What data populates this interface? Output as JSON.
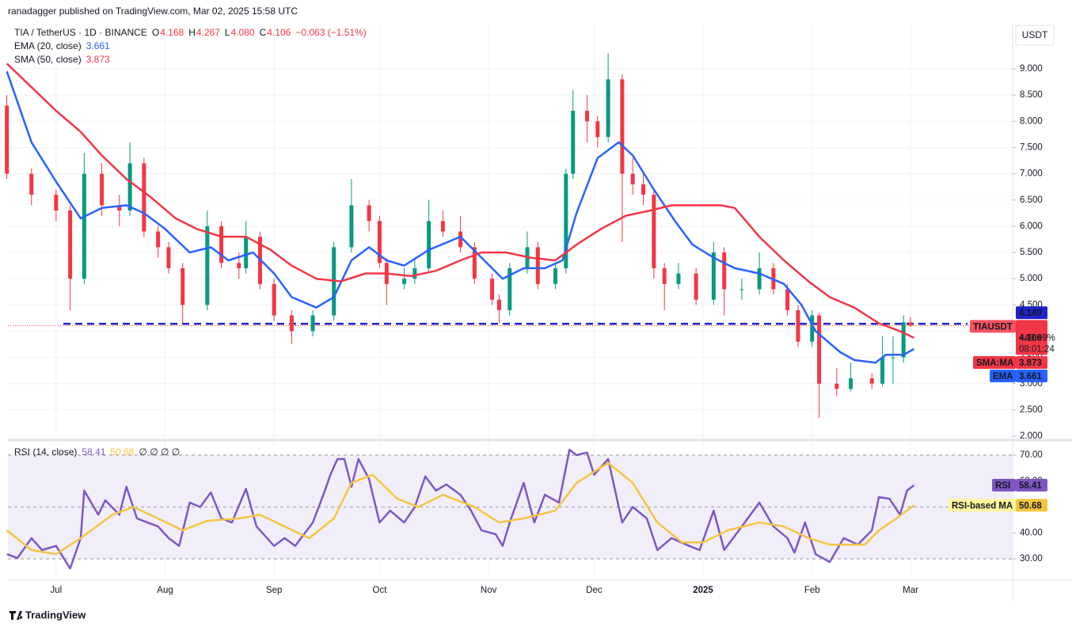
{
  "header": {
    "published": "ranadagger published on TradingView.com, Mar 02, 2025 15:58 UTC",
    "currency": "USDT",
    "footer": "TradingView"
  },
  "chart_data": [
    {
      "type": "candlestick",
      "symbol": "TIA / TetherUS · 1D · BINANCE",
      "ohlc_legend": [
        {
          "key": "O",
          "text": "4.168"
        },
        {
          "key": "H",
          "text": "4.267"
        },
        {
          "key": "L",
          "text": "4.080"
        },
        {
          "key": "C",
          "text": "4.106"
        }
      ],
      "change": "−0.063 (−1.51%)",
      "xlim": [
        -13.7,
        271.8
      ],
      "xticks": [
        {
          "value": 0,
          "label": "Jul"
        },
        {
          "value": 31,
          "label": "Aug"
        },
        {
          "value": 62,
          "label": "Sep"
        },
        {
          "value": 92,
          "label": "Oct"
        },
        {
          "value": 123,
          "label": "Nov"
        },
        {
          "value": 153,
          "label": "Dec"
        },
        {
          "value": 184,
          "label": "2025"
        },
        {
          "value": 215,
          "label": "Feb"
        },
        {
          "value": 243,
          "label": "Mar"
        }
      ],
      "ylim": [
        1.94,
        9.86
      ],
      "yticks": [
        {
          "value": 2,
          "label": "2.000"
        },
        {
          "value": 2.5,
          "label": "2.500"
        },
        {
          "value": 3,
          "label": "3.000"
        },
        {
          "value": 3.5,
          "label": "3.500"
        },
        {
          "value": 4,
          "label": "4.000"
        },
        {
          "value": 4.5,
          "label": "4.500"
        },
        {
          "value": 5,
          "label": "5.000"
        },
        {
          "value": 5.5,
          "label": "5.500"
        },
        {
          "value": 6,
          "label": "6.000"
        },
        {
          "value": 6.5,
          "label": "6.500"
        },
        {
          "value": 7,
          "label": "7.000"
        },
        {
          "value": 7.5,
          "label": "7.500"
        },
        {
          "value": 8,
          "label": "8.000"
        },
        {
          "value": 8.5,
          "label": "8.500"
        },
        {
          "value": 9,
          "label": "9.000"
        }
      ],
      "grid": true,
      "colors": {
        "up": "#089981",
        "down": "#f23645"
      },
      "candles": [
        {
          "x": -14,
          "o": 8.3,
          "h": 8.5,
          "l": 6.9,
          "c": 7.0
        },
        {
          "x": -7,
          "o": 7.0,
          "h": 7.1,
          "l": 6.4,
          "c": 6.6
        },
        {
          "x": 0,
          "o": 6.6,
          "h": 6.7,
          "l": 6.1,
          "c": 6.3
        },
        {
          "x": 4,
          "o": 6.3,
          "h": 6.4,
          "l": 4.4,
          "c": 5.0
        },
        {
          "x": 8,
          "o": 5.0,
          "h": 7.4,
          "l": 4.9,
          "c": 7.0
        },
        {
          "x": 13,
          "o": 7.0,
          "h": 7.2,
          "l": 6.2,
          "c": 6.4
        },
        {
          "x": 18,
          "o": 6.4,
          "h": 6.6,
          "l": 6.0,
          "c": 6.3
        },
        {
          "x": 21,
          "o": 6.3,
          "h": 7.6,
          "l": 6.2,
          "c": 7.2
        },
        {
          "x": 25,
          "o": 7.2,
          "h": 7.3,
          "l": 5.8,
          "c": 5.9
        },
        {
          "x": 29,
          "o": 5.9,
          "h": 6.0,
          "l": 5.4,
          "c": 5.6
        },
        {
          "x": 32,
          "o": 5.6,
          "h": 5.7,
          "l": 5.1,
          "c": 5.2
        },
        {
          "x": 36,
          "o": 5.2,
          "h": 5.3,
          "l": 4.15,
          "c": 4.5
        },
        {
          "x": 43,
          "o": 4.5,
          "h": 6.3,
          "l": 4.4,
          "c": 6.0
        },
        {
          "x": 47,
          "o": 6.0,
          "h": 6.1,
          "l": 5.2,
          "c": 5.3
        },
        {
          "x": 52,
          "o": 5.3,
          "h": 5.5,
          "l": 5.0,
          "c": 5.2
        },
        {
          "x": 54,
          "o": 5.2,
          "h": 6.1,
          "l": 5.1,
          "c": 5.8
        },
        {
          "x": 58,
          "o": 5.8,
          "h": 5.9,
          "l": 4.8,
          "c": 4.9
        },
        {
          "x": 62,
          "o": 4.9,
          "h": 5.0,
          "l": 4.2,
          "c": 4.3
        },
        {
          "x": 67,
          "o": 4.3,
          "h": 4.4,
          "l": 3.75,
          "c": 4.0
        },
        {
          "x": 73,
          "o": 4.0,
          "h": 4.4,
          "l": 3.9,
          "c": 4.3
        },
        {
          "x": 79,
          "o": 4.3,
          "h": 5.7,
          "l": 4.2,
          "c": 5.6
        },
        {
          "x": 84,
          "o": 5.6,
          "h": 6.9,
          "l": 5.5,
          "c": 6.4
        },
        {
          "x": 89,
          "o": 6.4,
          "h": 6.5,
          "l": 5.9,
          "c": 6.1
        },
        {
          "x": 92,
          "o": 6.1,
          "h": 6.2,
          "l": 5.2,
          "c": 5.3
        },
        {
          "x": 94,
          "o": 5.3,
          "h": 5.4,
          "l": 4.5,
          "c": 4.9
        },
        {
          "x": 99,
          "o": 4.9,
          "h": 5.2,
          "l": 4.8,
          "c": 5.0
        },
        {
          "x": 102,
          "o": 5.0,
          "h": 5.4,
          "l": 4.9,
          "c": 5.2
        },
        {
          "x": 106,
          "o": 5.2,
          "h": 6.5,
          "l": 5.1,
          "c": 6.1
        },
        {
          "x": 110,
          "o": 6.1,
          "h": 6.3,
          "l": 5.8,
          "c": 5.9
        },
        {
          "x": 115,
          "o": 5.9,
          "h": 6.2,
          "l": 5.5,
          "c": 5.6
        },
        {
          "x": 119,
          "o": 5.6,
          "h": 5.7,
          "l": 4.9,
          "c": 5.0
        },
        {
          "x": 124,
          "o": 5.0,
          "h": 5.1,
          "l": 4.5,
          "c": 4.6
        },
        {
          "x": 126,
          "o": 4.6,
          "h": 4.7,
          "l": 4.15,
          "c": 4.4
        },
        {
          "x": 129,
          "o": 4.4,
          "h": 5.3,
          "l": 4.3,
          "c": 5.2
        },
        {
          "x": 134,
          "o": 5.2,
          "h": 5.9,
          "l": 5.1,
          "c": 5.6
        },
        {
          "x": 137,
          "o": 5.6,
          "h": 5.7,
          "l": 4.8,
          "c": 4.9
        },
        {
          "x": 142,
          "o": 4.9,
          "h": 5.3,
          "l": 4.8,
          "c": 5.2
        },
        {
          "x": 145,
          "o": 5.2,
          "h": 7.1,
          "l": 5.1,
          "c": 7.0
        },
        {
          "x": 147,
          "o": 7.0,
          "h": 8.6,
          "l": 6.9,
          "c": 8.2
        },
        {
          "x": 151,
          "o": 8.2,
          "h": 8.5,
          "l": 7.6,
          "c": 8.0
        },
        {
          "x": 154,
          "o": 8.0,
          "h": 8.1,
          "l": 7.5,
          "c": 7.7
        },
        {
          "x": 157,
          "o": 7.7,
          "h": 9.3,
          "l": 7.6,
          "c": 8.8
        },
        {
          "x": 161,
          "o": 8.8,
          "h": 8.9,
          "l": 5.7,
          "c": 7.0
        },
        {
          "x": 164,
          "o": 7.0,
          "h": 7.3,
          "l": 6.6,
          "c": 6.8
        },
        {
          "x": 167,
          "o": 6.8,
          "h": 7.0,
          "l": 6.4,
          "c": 6.6
        },
        {
          "x": 170,
          "o": 6.6,
          "h": 6.7,
          "l": 5.0,
          "c": 5.2
        },
        {
          "x": 173,
          "o": 5.2,
          "h": 5.3,
          "l": 4.4,
          "c": 4.9
        },
        {
          "x": 177,
          "o": 4.9,
          "h": 5.3,
          "l": 4.8,
          "c": 5.1
        },
        {
          "x": 182,
          "o": 5.1,
          "h": 5.2,
          "l": 4.5,
          "c": 4.6
        },
        {
          "x": 187,
          "o": 4.6,
          "h": 5.7,
          "l": 4.5,
          "c": 5.5
        },
        {
          "x": 190,
          "o": 5.5,
          "h": 5.6,
          "l": 4.3,
          "c": 4.8
        },
        {
          "x": 195,
          "o": 4.8,
          "h": 5.0,
          "l": 4.6,
          "c": 4.8
        },
        {
          "x": 200,
          "o": 4.8,
          "h": 5.5,
          "l": 4.7,
          "c": 5.2
        },
        {
          "x": 204,
          "o": 5.2,
          "h": 5.3,
          "l": 4.7,
          "c": 4.8
        },
        {
          "x": 208,
          "o": 4.8,
          "h": 4.9,
          "l": 4.3,
          "c": 4.4
        },
        {
          "x": 211,
          "o": 4.4,
          "h": 4.5,
          "l": 3.7,
          "c": 3.8
        },
        {
          "x": 215,
          "o": 3.8,
          "h": 4.4,
          "l": 3.7,
          "c": 4.3
        },
        {
          "x": 217,
          "o": 4.3,
          "h": 4.35,
          "l": 2.35,
          "c": 3.0
        },
        {
          "x": 222,
          "o": 3.0,
          "h": 3.3,
          "l": 2.75,
          "c": 2.9
        },
        {
          "x": 226,
          "o": 2.9,
          "h": 3.4,
          "l": 2.85,
          "c": 3.1
        },
        {
          "x": 232,
          "o": 3.1,
          "h": 3.2,
          "l": 2.9,
          "c": 3.0
        },
        {
          "x": 235,
          "o": 3.0,
          "h": 3.9,
          "l": 2.95,
          "c": 3.5
        },
        {
          "x": 238,
          "o": 3.5,
          "h": 3.9,
          "l": 3.0,
          "c": 3.5
        },
        {
          "x": 241,
          "o": 3.5,
          "h": 4.3,
          "l": 3.4,
          "c": 4.169
        },
        {
          "x": 243,
          "o": 4.168,
          "h": 4.267,
          "l": 4.08,
          "c": 4.106
        }
      ],
      "series": [
        {
          "name": "EMA (20, close)",
          "tag": "EMA",
          "color": "#2962ff",
          "x": [
            -14,
            -7,
            0,
            7,
            13,
            20,
            25,
            31,
            38,
            44,
            49,
            56,
            62,
            67,
            74,
            79,
            84,
            89,
            94,
            99,
            106,
            115,
            121,
            127,
            133,
            139,
            144,
            148,
            154,
            160,
            164,
            170,
            176,
            181,
            187,
            193,
            200,
            207,
            212,
            216,
            223,
            227,
            233,
            236,
            241,
            244
          ],
          "values": [
            8.95,
            7.6,
            6.85,
            6.15,
            6.35,
            6.4,
            6.25,
            5.95,
            5.5,
            5.6,
            5.35,
            5.5,
            5.1,
            4.65,
            4.45,
            4.65,
            5.35,
            5.6,
            5.35,
            5.25,
            5.55,
            5.8,
            5.4,
            5.0,
            5.2,
            5.2,
            5.35,
            6.25,
            7.3,
            7.6,
            7.35,
            6.7,
            6.1,
            5.65,
            5.4,
            5.2,
            5.1,
            4.9,
            4.5,
            4.0,
            3.6,
            3.45,
            3.4,
            3.55,
            3.55,
            3.661
          ]
        },
        {
          "name": "SMA (50, close)",
          "tag": "SMA:MA",
          "color": "#f23645",
          "x": [
            -14,
            -7,
            0,
            7,
            13,
            20,
            27,
            34,
            40,
            47,
            54,
            61,
            67,
            74,
            81,
            88,
            94,
            101,
            108,
            115,
            121,
            128,
            135,
            142,
            148,
            155,
            162,
            169,
            175,
            182,
            189,
            193,
            200,
            207,
            214,
            220,
            227,
            234,
            240,
            244
          ],
          "values": [
            9.1,
            8.65,
            8.2,
            7.8,
            7.35,
            6.9,
            6.55,
            6.15,
            5.95,
            5.8,
            5.8,
            5.55,
            5.25,
            5.0,
            4.95,
            5.1,
            5.1,
            5.05,
            5.15,
            5.35,
            5.5,
            5.5,
            5.4,
            5.35,
            5.65,
            5.95,
            6.2,
            6.3,
            6.4,
            6.4,
            6.4,
            6.35,
            5.8,
            5.35,
            4.95,
            4.65,
            4.45,
            4.15,
            4.0,
            3.873
          ]
        }
      ],
      "horizontal_line": {
        "value": 4.14,
        "label": "4.140",
        "color": "#1e22c8"
      },
      "last_price_tag": {
        "name": "TIAUSDT",
        "change": "−49.99%",
        "countdown": "08:01:24"
      }
    },
    {
      "type": "line",
      "title": "RSI (14, close)",
      "extra": "∅ ∅ ∅ ∅",
      "xlim": [
        -13.7,
        271.8
      ],
      "ylim": [
        21.8,
        75.2
      ],
      "yticks": [
        {
          "value": 30,
          "label": "30.00"
        },
        {
          "value": 40,
          "label": "40.00"
        },
        {
          "value": 50,
          "label": "50.00"
        },
        {
          "value": 60,
          "label": "60.00"
        },
        {
          "value": 70,
          "label": "70.00"
        }
      ],
      "band": [
        30,
        70
      ],
      "levels": [
        30,
        50,
        70
      ],
      "series": [
        {
          "name": "RSI",
          "color": "#7e57c2",
          "x": [
            -14,
            -11,
            -7,
            -4,
            0,
            4,
            7,
            8,
            12,
            14,
            18,
            20,
            23,
            26,
            29,
            32,
            35,
            38,
            41,
            44,
            47,
            50,
            54,
            57,
            62,
            65,
            68,
            73,
            76,
            78,
            80,
            82,
            84,
            86,
            89,
            92,
            95,
            99,
            102,
            105,
            108,
            111,
            115,
            118,
            121,
            125,
            127,
            129,
            133,
            136,
            139,
            143,
            146,
            148,
            151,
            153,
            157,
            161,
            164,
            168,
            171,
            175,
            180,
            183,
            187,
            190,
            195,
            200,
            204,
            208,
            210,
            213,
            216,
            220,
            224,
            228,
            232,
            234,
            237,
            240,
            242,
            244
          ],
          "values": [
            31.8,
            30.3,
            38,
            33.4,
            35,
            26.3,
            38,
            56.3,
            47,
            52.6,
            47,
            57.8,
            45.6,
            44,
            42.5,
            38,
            35,
            51.7,
            50,
            55.6,
            45.6,
            44,
            57,
            42.5,
            35,
            38,
            35,
            44,
            54.7,
            62.4,
            68.5,
            68.5,
            57.8,
            68.5,
            60.8,
            44,
            48.6,
            44,
            50,
            61.8,
            56.3,
            58.7,
            54.7,
            48.6,
            41,
            39.5,
            35,
            44,
            59.3,
            44,
            54.7,
            51.7,
            72.1,
            70,
            71,
            62.4,
            68.5,
            44,
            50,
            45.6,
            33.4,
            38,
            35,
            33.4,
            48.6,
            33.4,
            42.5,
            51.7,
            42.5,
            38,
            32.4,
            44,
            31.8,
            28.8,
            38,
            35.5,
            41,
            53.8,
            53.2,
            47,
            56.3,
            58.41
          ]
        },
        {
          "name": "RSI-based MA",
          "color": "#f5c542",
          "x": [
            -14,
            -7,
            0,
            7,
            16,
            22,
            29,
            36,
            43,
            52,
            58,
            65,
            72,
            79,
            84,
            90,
            97,
            103,
            110,
            119,
            126,
            133,
            142,
            148,
            157,
            164,
            171,
            178,
            184,
            191,
            200,
            207,
            214,
            220,
            230,
            234,
            239,
            244
          ],
          "values": [
            41,
            33.4,
            31.8,
            38,
            47,
            50,
            45.6,
            41,
            44.7,
            45.6,
            47,
            42.5,
            38,
            45.6,
            59.3,
            62.4,
            53.2,
            50,
            54.7,
            50,
            44,
            45.6,
            48.6,
            59.3,
            67,
            59.3,
            44,
            36.4,
            36.4,
            41,
            44,
            42.5,
            38,
            35.5,
            35.5,
            41,
            45.6,
            50.68
          ]
        }
      ]
    }
  ]
}
